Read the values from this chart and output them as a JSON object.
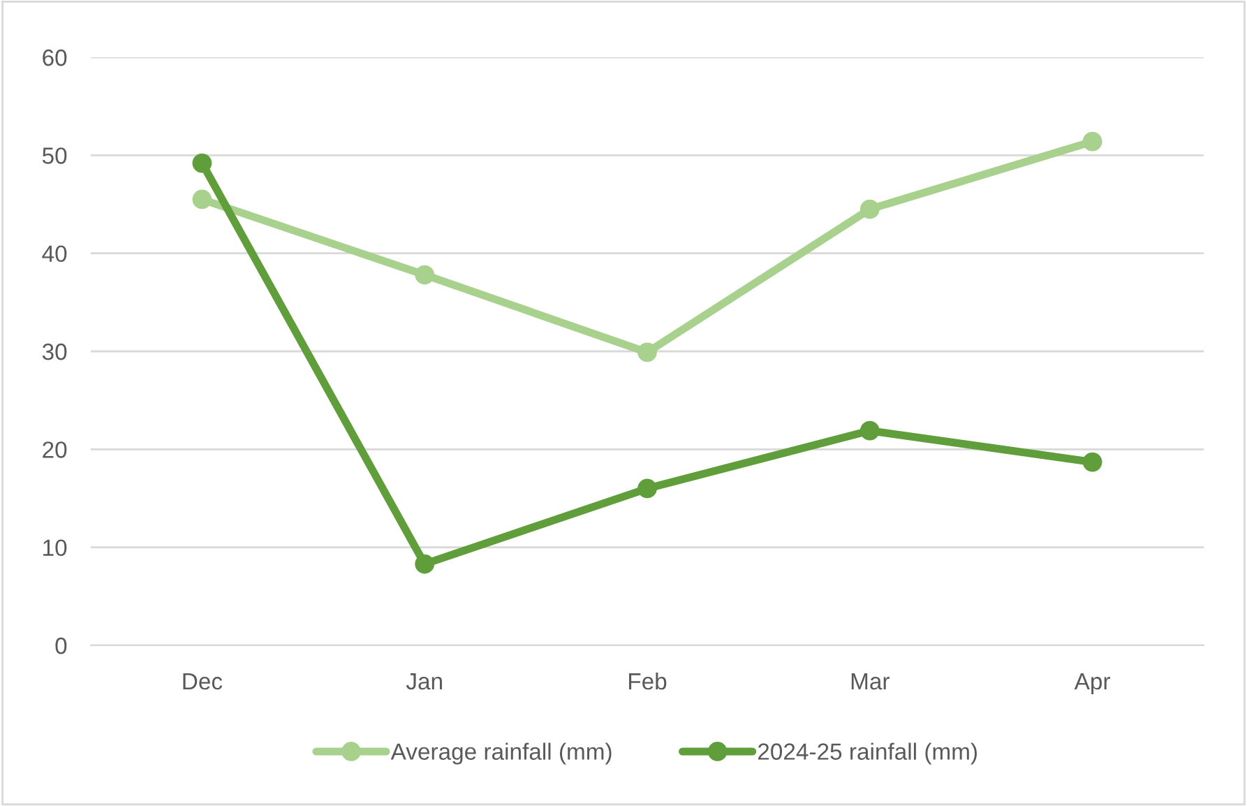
{
  "chart_data": {
    "type": "line",
    "categories": [
      "Dec",
      "Jan",
      "Feb",
      "Mar",
      "Apr"
    ],
    "series": [
      {
        "name": "Average rainfall (mm)",
        "color": "#a9d18e",
        "values": [
          45.5,
          37.8,
          29.9,
          44.5,
          51.4
        ]
      },
      {
        "name": "2024-25 rainfall (mm)",
        "color": "#5f9e3b",
        "values": [
          49.2,
          8.3,
          16.0,
          21.9,
          18.7
        ]
      }
    ],
    "ylim": [
      0,
      60
    ],
    "yticks": [
      0,
      10,
      20,
      30,
      40,
      50,
      60
    ],
    "grid": "y",
    "legend": "bottom",
    "marker": "circle",
    "line_style": "solid"
  }
}
